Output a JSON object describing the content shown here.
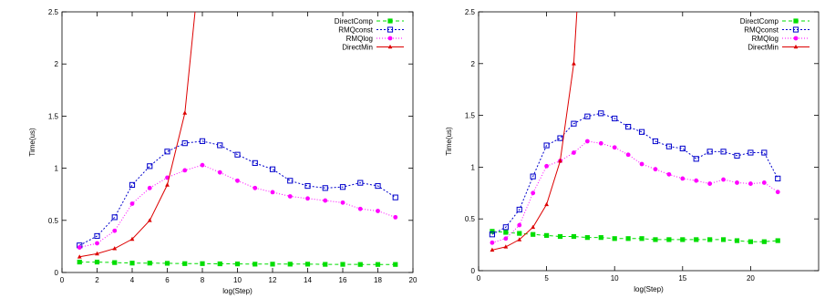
{
  "chart_data": [
    {
      "type": "line",
      "xlabel": "log(Step)",
      "ylabel": "Time(us)",
      "xlim": [
        0,
        20
      ],
      "ylim": [
        0,
        2.5
      ],
      "xticks": [
        0,
        2,
        4,
        6,
        8,
        10,
        12,
        14,
        16,
        18,
        20
      ],
      "yticks": [
        0,
        0.5,
        1,
        1.5,
        2,
        2.5
      ],
      "grid": false,
      "legend": "top-right",
      "series": [
        {
          "name": "DirectComp",
          "color": "#00dd00",
          "marker": "filled-square",
          "dash": "4,3",
          "x": [
            1,
            2,
            3,
            4,
            5,
            6,
            7,
            8,
            9,
            10,
            11,
            12,
            13,
            14,
            15,
            16,
            17,
            18,
            19
          ],
          "y": [
            0.1,
            0.1,
            0.095,
            0.09,
            0.09,
            0.088,
            0.085,
            0.085,
            0.083,
            0.082,
            0.08,
            0.08,
            0.08,
            0.08,
            0.078,
            0.078,
            0.077,
            0.077,
            0.077
          ]
        },
        {
          "name": "RMQconst",
          "color": "#0000cc",
          "marker": "open-square",
          "dash": "2,2",
          "x": [
            1,
            2,
            3,
            4,
            5,
            6,
            7,
            8,
            9,
            10,
            11,
            12,
            13,
            14,
            15,
            16,
            17,
            18,
            19
          ],
          "y": [
            0.26,
            0.35,
            0.53,
            0.84,
            1.02,
            1.16,
            1.24,
            1.26,
            1.22,
            1.13,
            1.05,
            0.99,
            0.88,
            0.83,
            0.81,
            0.82,
            0.86,
            0.83,
            0.72
          ]
        },
        {
          "name": "RMQlog",
          "color": "#ff00ff",
          "marker": "filled-circle",
          "dash": "1,2",
          "x": [
            1,
            2,
            3,
            4,
            5,
            6,
            7,
            8,
            9,
            10,
            11,
            12,
            13,
            14,
            15,
            16,
            17,
            18,
            19
          ],
          "y": [
            0.24,
            0.28,
            0.4,
            0.66,
            0.81,
            0.91,
            0.98,
            1.03,
            0.96,
            0.88,
            0.81,
            0.77,
            0.73,
            0.71,
            0.69,
            0.67,
            0.61,
            0.59,
            0.53
          ]
        },
        {
          "name": "DirectMin",
          "color": "#dd0000",
          "marker": "triangle",
          "dash": "",
          "x": [
            1,
            2,
            3,
            4,
            5,
            6,
            7,
            8
          ],
          "y": [
            0.15,
            0.18,
            0.23,
            0.32,
            0.5,
            0.84,
            1.53,
            3.2
          ]
        }
      ]
    },
    {
      "type": "line",
      "xlabel": "log(Step)",
      "ylabel": "Time(us)",
      "xlim": [
        0,
        25
      ],
      "ylim": [
        0,
        2.5
      ],
      "xticks": [
        0,
        5,
        10,
        15,
        20
      ],
      "yticks": [
        0,
        0.5,
        1,
        1.5,
        2,
        2.5
      ],
      "grid": false,
      "legend": "top-right",
      "series": [
        {
          "name": "DirectComp",
          "color": "#00dd00",
          "marker": "filled-square",
          "dash": "4,3",
          "x": [
            1,
            2,
            3,
            4,
            5,
            6,
            7,
            8,
            9,
            10,
            11,
            12,
            13,
            14,
            15,
            16,
            17,
            18,
            19,
            20,
            21,
            22
          ],
          "y": [
            0.38,
            0.37,
            0.36,
            0.35,
            0.34,
            0.33,
            0.33,
            0.32,
            0.32,
            0.31,
            0.31,
            0.31,
            0.3,
            0.3,
            0.3,
            0.3,
            0.3,
            0.3,
            0.29,
            0.28,
            0.28,
            0.29
          ]
        },
        {
          "name": "RMQconst",
          "color": "#0000cc",
          "marker": "open-square",
          "dash": "2,2",
          "x": [
            1,
            2,
            3,
            4,
            5,
            6,
            7,
            8,
            9,
            10,
            11,
            12,
            13,
            14,
            15,
            16,
            17,
            18,
            19,
            20,
            21,
            22
          ],
          "y": [
            0.35,
            0.42,
            0.59,
            0.91,
            1.21,
            1.28,
            1.42,
            1.49,
            1.52,
            1.47,
            1.39,
            1.34,
            1.25,
            1.2,
            1.18,
            1.08,
            1.15,
            1.15,
            1.11,
            1.14,
            1.14,
            0.89
          ]
        },
        {
          "name": "RMQlog",
          "color": "#ff00ff",
          "marker": "filled-circle",
          "dash": "1,2",
          "x": [
            1,
            2,
            3,
            4,
            5,
            6,
            7,
            8,
            9,
            10,
            11,
            12,
            13,
            14,
            15,
            16,
            17,
            18,
            19,
            20,
            21,
            22
          ],
          "y": [
            0.27,
            0.31,
            0.44,
            0.75,
            1.01,
            1.06,
            1.14,
            1.25,
            1.23,
            1.19,
            1.12,
            1.03,
            0.98,
            0.93,
            0.89,
            0.87,
            0.84,
            0.88,
            0.85,
            0.84,
            0.85,
            0.76
          ]
        },
        {
          "name": "DirectMin",
          "color": "#dd0000",
          "marker": "triangle",
          "dash": "",
          "x": [
            1,
            2,
            3,
            4,
            5,
            6,
            7,
            8
          ],
          "y": [
            0.2,
            0.23,
            0.3,
            0.42,
            0.64,
            1.06,
            2.0,
            4.2
          ]
        }
      ]
    }
  ]
}
